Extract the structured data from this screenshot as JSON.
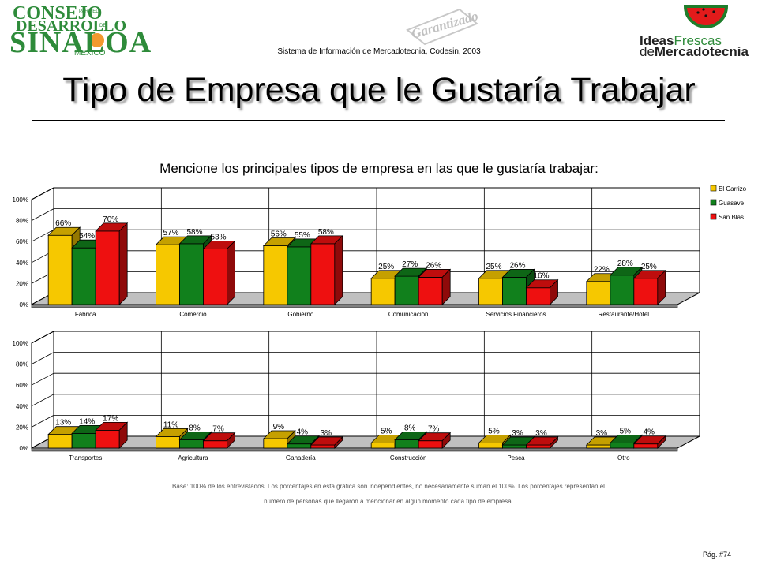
{
  "header": {
    "logo_left": {
      "line1": "CONSEJO",
      "line2": "DESARROLLO",
      "line3": "SINALOA",
      "tag_para": "PARA EL",
      "tag_de": "DE",
      "sub": "MEXICO"
    },
    "stamp_text": "Garantizado",
    "system_line": "Sistema de Información de Mercadotecnia, Codesin, 2003",
    "logo_right": {
      "word1": "Ideas",
      "word2": "Frescas",
      "word3": "de",
      "word4": "Mercadotecnia"
    }
  },
  "title": "Tipo de Empresa que le Gustaría Trabajar",
  "question": "Mencione los principales tipos de empresa en las que le gustaría trabajar:",
  "legend": [
    "El Carrizo",
    "Guasave",
    "San Blas"
  ],
  "series_colors": [
    "#f6c800",
    "#11801c",
    "#ee1010"
  ],
  "chart_data": [
    {
      "type": "bar",
      "ylim": [
        0,
        100
      ],
      "yticks": [
        "0%",
        "20%",
        "40%",
        "60%",
        "80%",
        "100%"
      ],
      "categories": [
        "Fábrica",
        "Comercio",
        "Gobierno",
        "Comunicación",
        "Servicios Financieros",
        "Restaurante/Hotel"
      ],
      "series": [
        {
          "name": "El Carrizo",
          "values": [
            66,
            57,
            56,
            25,
            25,
            22
          ]
        },
        {
          "name": "Guasave",
          "values": [
            54,
            58,
            55,
            27,
            26,
            28
          ]
        },
        {
          "name": "San Blas",
          "values": [
            70,
            53,
            58,
            26,
            16,
            25
          ]
        }
      ],
      "legend": "right"
    },
    {
      "type": "bar",
      "ylim": [
        0,
        100
      ],
      "yticks": [
        "0%",
        "20%",
        "40%",
        "60%",
        "80%",
        "100%"
      ],
      "categories": [
        "Transportes",
        "Agricultura",
        "Ganadería",
        "Construcción",
        "Pesca",
        "Otro"
      ],
      "series": [
        {
          "name": "El Carrizo",
          "values": [
            13,
            11,
            9,
            5,
            5,
            3
          ]
        },
        {
          "name": "Guasave",
          "values": [
            14,
            8,
            4,
            8,
            3,
            5
          ]
        },
        {
          "name": "San Blas",
          "values": [
            17,
            7,
            3,
            7,
            3,
            4
          ]
        }
      ]
    }
  ],
  "footnote": {
    "line1": "Base: 100% de los entrevistados. Los porcentajes en esta gráfica son independientes, no necesariamente suman el 100%. Los porcentajes representan el",
    "line2": "número de personas que llegaron a mencionar en algún momento cada tipo de empresa."
  },
  "page_number": "Pág. #74"
}
